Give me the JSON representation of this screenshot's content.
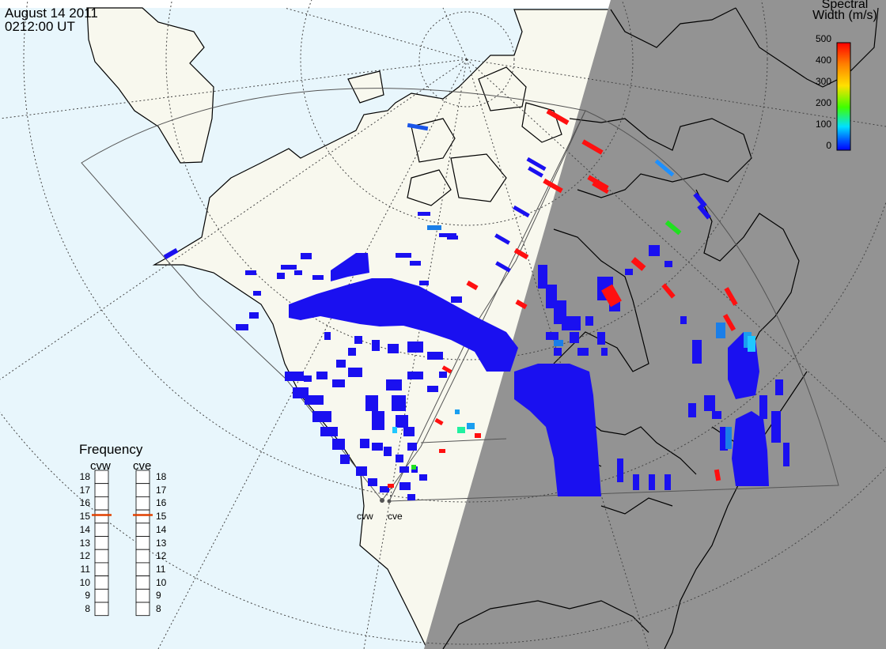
{
  "header": {
    "date": "August  14 2011",
    "time": "0212:00 UT"
  },
  "colorbar": {
    "title_line1": "Spectral",
    "title_line2": "Width (m/s)",
    "ticks": [
      "500",
      "400",
      "300",
      "200",
      "100",
      "0"
    ],
    "colors": [
      "#ff0000",
      "#ff8000",
      "#ffe000",
      "#40ff00",
      "#00e0ff",
      "#0060ff",
      "#0000ff"
    ]
  },
  "frequency_panel": {
    "title": "Frequency",
    "radars": [
      "cvw",
      "cve"
    ],
    "scale": [
      "18",
      "17",
      "16",
      "15",
      "14",
      "13",
      "12",
      "11",
      "10",
      "9",
      "8"
    ],
    "selected": "15",
    "marker_color": "#e04000"
  },
  "sites": [
    {
      "name": "cvw"
    },
    {
      "name": "cve"
    }
  ],
  "colors": {
    "ocean": "#e8f6fc",
    "land": "#f8f8ee",
    "night": "#939393",
    "coast": "#000000",
    "echo_blue": "#1a10f0"
  }
}
